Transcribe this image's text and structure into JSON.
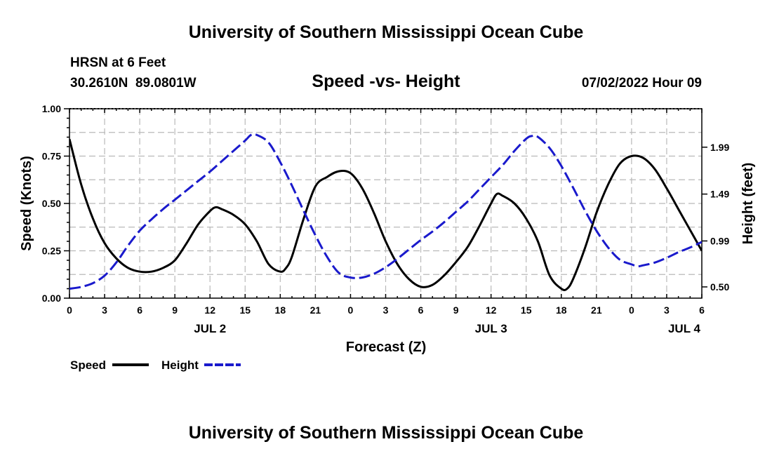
{
  "page_title": "University of Southern Mississippi Ocean Cube",
  "footer_title": "University of Southern Mississippi Ocean Cube",
  "station_label": "HRSN at 6 Feet",
  "coordinates": "30.2610N  89.0801W",
  "forecast_time": "07/02/2022 Hour 09",
  "legend": {
    "speed_label": "Speed",
    "height_label": "Height"
  },
  "colors": {
    "speed": "#000000",
    "height": "#1a1acc"
  },
  "chart_data": {
    "type": "line",
    "title": "Speed -vs- Height",
    "xlabel": "Forecast (Z)",
    "ylabel": "Speed (Knots)",
    "y2label": "Height (feet)",
    "x_range_hours": [
      0,
      54
    ],
    "xticks": [
      {
        "h": 0,
        "label": "0"
      },
      {
        "h": 3,
        "label": "3"
      },
      {
        "h": 6,
        "label": "6"
      },
      {
        "h": 9,
        "label": "9"
      },
      {
        "h": 12,
        "label": "12"
      },
      {
        "h": 15,
        "label": "15"
      },
      {
        "h": 18,
        "label": "18"
      },
      {
        "h": 21,
        "label": "21"
      },
      {
        "h": 24,
        "label": "0"
      },
      {
        "h": 27,
        "label": "3"
      },
      {
        "h": 30,
        "label": "6"
      },
      {
        "h": 33,
        "label": "9"
      },
      {
        "h": 36,
        "label": "12"
      },
      {
        "h": 39,
        "label": "15"
      },
      {
        "h": 42,
        "label": "18"
      },
      {
        "h": 45,
        "label": "21"
      },
      {
        "h": 48,
        "label": "0"
      },
      {
        "h": 51,
        "label": "3"
      },
      {
        "h": 54,
        "label": "6"
      }
    ],
    "date_labels": [
      {
        "h": 12,
        "label": "JUL 2"
      },
      {
        "h": 36,
        "label": "JUL 3"
      },
      {
        "h": 52.5,
        "label": "JUL 4"
      }
    ],
    "ylim": [
      0,
      1
    ],
    "yticks": [
      {
        "v": 0,
        "label": "0.00"
      },
      {
        "v": 0.25,
        "label": "0.25"
      },
      {
        "v": 0.5,
        "label": "0.50"
      },
      {
        "v": 0.75,
        "label": "0.75"
      },
      {
        "v": 1,
        "label": "1.00"
      }
    ],
    "y2lim": [
      0.38,
      2.4
    ],
    "y2ticks": [
      {
        "v": 0.5,
        "label": "0.50"
      },
      {
        "v": 0.99,
        "label": "0.99"
      },
      {
        "v": 1.49,
        "label": "1.49"
      },
      {
        "v": 1.99,
        "label": "1.99"
      }
    ],
    "series": [
      {
        "name": "Speed",
        "axis": "left",
        "x": [
          0,
          1,
          2,
          3,
          4,
          5,
          6,
          7,
          8,
          9,
          10,
          11,
          12,
          12.5,
          13,
          14,
          15,
          16,
          17,
          18,
          18.5,
          19,
          20,
          21,
          22,
          23,
          24,
          25,
          26,
          27,
          28,
          29,
          30,
          31,
          32,
          33,
          34,
          35,
          36,
          36.5,
          37,
          38,
          39,
          40,
          41,
          42,
          42.5,
          43,
          44,
          45,
          46,
          47,
          48,
          49,
          50,
          51,
          52,
          53,
          54
        ],
        "values": [
          0.84,
          0.6,
          0.42,
          0.29,
          0.21,
          0.16,
          0.14,
          0.14,
          0.16,
          0.2,
          0.29,
          0.39,
          0.46,
          0.48,
          0.47,
          0.44,
          0.39,
          0.3,
          0.18,
          0.14,
          0.16,
          0.22,
          0.42,
          0.59,
          0.64,
          0.67,
          0.66,
          0.58,
          0.45,
          0.3,
          0.18,
          0.1,
          0.06,
          0.07,
          0.12,
          0.19,
          0.27,
          0.38,
          0.5,
          0.55,
          0.54,
          0.5,
          0.42,
          0.3,
          0.12,
          0.05,
          0.05,
          0.1,
          0.26,
          0.45,
          0.6,
          0.71,
          0.75,
          0.74,
          0.68,
          0.58,
          0.47,
          0.36,
          0.25
        ]
      },
      {
        "name": "Height",
        "axis": "right",
        "x": [
          0,
          1,
          2,
          3,
          4,
          5,
          6,
          7,
          8,
          9,
          10,
          11,
          12,
          13,
          14,
          15,
          15.5,
          16,
          17,
          18,
          19,
          20,
          21,
          22,
          23,
          24,
          25,
          26,
          27,
          28,
          29,
          30,
          31,
          32,
          33,
          34,
          35,
          36,
          37,
          38,
          39,
          39.5,
          40,
          41,
          42,
          43,
          44,
          45,
          46,
          47,
          48,
          48.5,
          49,
          50,
          51,
          52,
          53,
          54
        ],
        "values": [
          0.48,
          0.5,
          0.54,
          0.62,
          0.76,
          0.94,
          1.1,
          1.22,
          1.33,
          1.43,
          1.53,
          1.63,
          1.73,
          1.84,
          1.95,
          2.06,
          2.12,
          2.12,
          2.04,
          1.83,
          1.58,
          1.31,
          1.05,
          0.82,
          0.65,
          0.6,
          0.6,
          0.64,
          0.71,
          0.8,
          0.9,
          1.0,
          1.09,
          1.19,
          1.3,
          1.41,
          1.54,
          1.67,
          1.8,
          1.95,
          2.08,
          2.11,
          2.1,
          1.98,
          1.79,
          1.56,
          1.32,
          1.1,
          0.92,
          0.79,
          0.74,
          0.72,
          0.73,
          0.76,
          0.81,
          0.87,
          0.92,
          0.98
        ]
      }
    ]
  }
}
